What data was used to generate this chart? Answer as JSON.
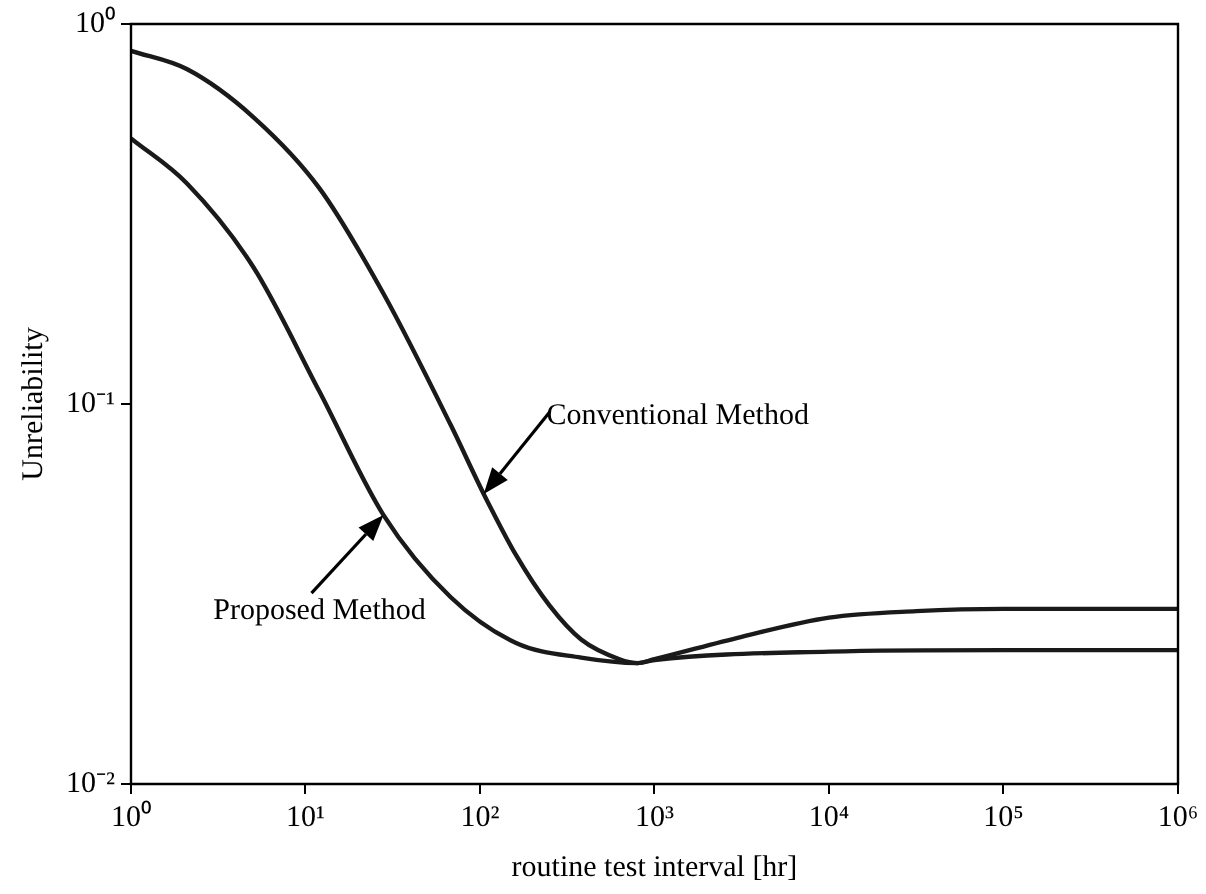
{
  "chart_data": {
    "type": "line",
    "xlabel": "routine test interval [hr]",
    "ylabel": "Unreliability",
    "log": "xy",
    "grid": false,
    "legend": false,
    "marker": "none",
    "line_style": "solid",
    "xlim": [
      1,
      1000000
    ],
    "xticks": [
      {
        "value": 1,
        "label": "10⁰"
      },
      {
        "value": 10,
        "label": "10¹"
      },
      {
        "value": 100,
        "label": "10²"
      },
      {
        "value": 1000,
        "label": "10³"
      },
      {
        "value": 10000,
        "label": "10⁴"
      },
      {
        "value": 100000,
        "label": "10⁵"
      },
      {
        "value": 1000000,
        "label": "10⁶"
      }
    ],
    "ylim": [
      0.01,
      1
    ],
    "yticks": [
      {
        "value": 0.01,
        "label": "10⁻²"
      },
      {
        "value": 0.1,
        "label": "10⁻¹"
      },
      {
        "value": 1,
        "label": "10⁰"
      }
    ],
    "series": [
      {
        "color": "#1a1a1a",
        "x": [
          1,
          2.1,
          5,
          12,
          28,
          68,
          105,
          161,
          250,
          380,
          630,
          800,
          1000,
          3160,
          10000,
          31600,
          100000,
          1000000
        ],
        "values": [
          0.85,
          0.76,
          0.57,
          0.37,
          0.195,
          0.088,
          0.058,
          0.04,
          0.0295,
          0.024,
          0.0213,
          0.0208,
          0.0213,
          0.0244,
          0.0274,
          0.0285,
          0.0289,
          0.0289
        ]
      },
      {
        "color": "#1a1a1a",
        "x": [
          1,
          2.1,
          5,
          12,
          28,
          68,
          161,
          380,
          800,
          1000,
          10000,
          100000,
          1000000
        ],
        "values": [
          0.5,
          0.38,
          0.23,
          0.108,
          0.051,
          0.031,
          0.0235,
          0.0215,
          0.0208,
          0.0212,
          0.0223,
          0.0225,
          0.0225
        ]
      }
    ],
    "annotations": [
      {
        "text": "Conventional Method",
        "x": 105,
        "y": 0.058
      },
      {
        "text": "Proposed Method",
        "x": 28,
        "y": 0.051
      }
    ]
  }
}
